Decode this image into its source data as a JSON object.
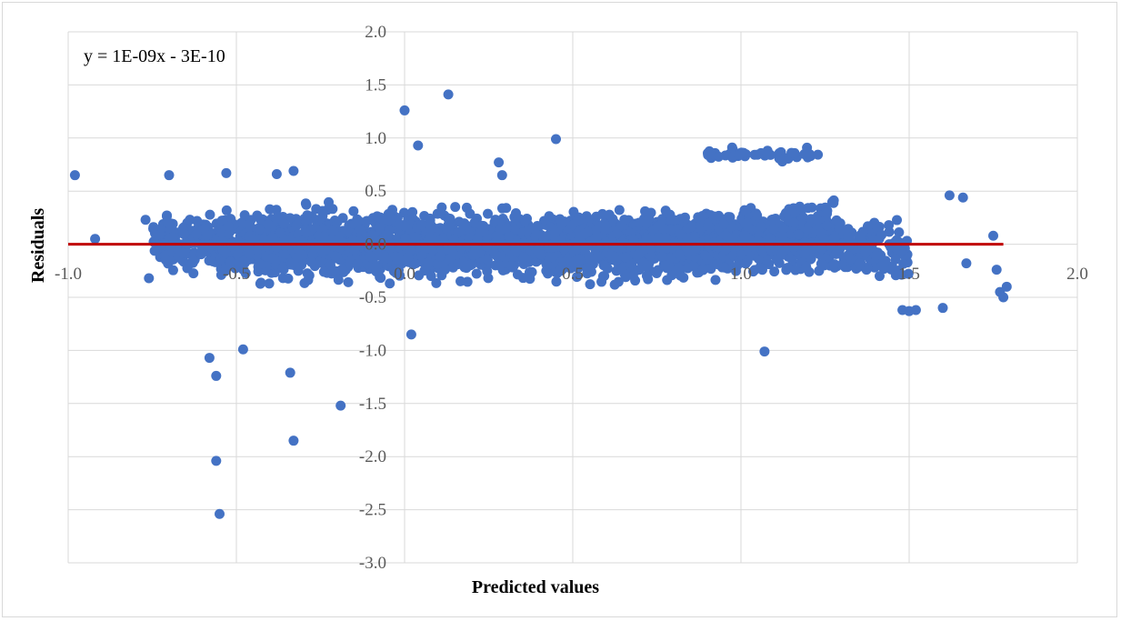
{
  "chart_data": {
    "type": "scatter",
    "title": "",
    "xlabel": "Predicted values",
    "ylabel": "Residuals",
    "xlim": [
      -1.0,
      2.0
    ],
    "ylim": [
      -3.0,
      2.0
    ],
    "x_ticks": [
      "-1.0",
      "-0.5",
      "0.0",
      "0.5",
      "1.0",
      "1.5",
      "2.0"
    ],
    "y_ticks": [
      "2.0",
      "1.5",
      "1.0",
      "0.5",
      "0.0",
      "-0.5",
      "-1.0",
      "-1.5",
      "-2.0",
      "-2.5",
      "-3.0"
    ],
    "grid": true,
    "trendline": {
      "equation": "y = 1E-09x - 3E-10",
      "x_range": [
        -1.0,
        1.78
      ],
      "slope": 1e-09,
      "intercept": -3e-10,
      "color": "#c00000"
    },
    "point_color": "#4472c4",
    "outliers": [
      [
        -0.98,
        0.65
      ],
      [
        -0.92,
        0.05
      ],
      [
        -0.58,
        -1.07
      ],
      [
        -0.56,
        -1.24
      ],
      [
        -0.56,
        -2.04
      ],
      [
        -0.55,
        -2.54
      ],
      [
        -0.48,
        -0.99
      ],
      [
        -0.34,
        -1.21
      ],
      [
        -0.33,
        -1.85
      ],
      [
        -0.19,
        -1.52
      ],
      [
        0.0,
        1.26
      ],
      [
        0.13,
        1.41
      ],
      [
        0.45,
        0.99
      ],
      [
        0.04,
        0.93
      ],
      [
        0.02,
        -0.85
      ],
      [
        1.07,
        -1.01
      ],
      [
        1.6,
        -0.6
      ],
      [
        1.62,
        0.46
      ],
      [
        1.66,
        0.44
      ],
      [
        1.67,
        -0.18
      ],
      [
        1.75,
        0.08
      ],
      [
        1.76,
        -0.24
      ],
      [
        1.77,
        -0.45
      ],
      [
        1.78,
        -0.5
      ],
      [
        1.79,
        -0.4
      ],
      [
        1.5,
        -0.63
      ],
      [
        1.48,
        -0.62
      ],
      [
        1.52,
        -0.62
      ],
      [
        -0.7,
        0.65
      ],
      [
        -0.53,
        0.67
      ],
      [
        -0.38,
        0.66
      ],
      [
        -0.33,
        0.69
      ],
      [
        0.28,
        0.77
      ],
      [
        0.29,
        0.65
      ],
      [
        -0.77,
        0.23
      ],
      [
        -0.76,
        -0.32
      ]
    ],
    "bulk_clusters": [
      {
        "x_range": [
          -0.75,
          -0.55
        ],
        "y_mean": 0.0,
        "y_spread": 0.55,
        "count": 180
      },
      {
        "x_range": [
          -0.55,
          0.0
        ],
        "y_mean": 0.0,
        "y_spread": 0.62,
        "count": 900
      },
      {
        "x_range": [
          0.0,
          0.5
        ],
        "y_mean": 0.0,
        "y_spread": 0.55,
        "count": 800
      },
      {
        "x_range": [
          0.5,
          1.0
        ],
        "y_mean": 0.0,
        "y_spread": 0.58,
        "count": 750
      },
      {
        "x_range": [
          1.0,
          1.3
        ],
        "y_mean": 0.05,
        "y_spread": 0.6,
        "count": 420
      },
      {
        "x_range": [
          0.9,
          1.25
        ],
        "y_mean": 0.85,
        "y_spread": 0.12,
        "count": 45
      },
      {
        "x_range": [
          1.3,
          1.5
        ],
        "y_mean": -0.05,
        "y_spread": 0.5,
        "count": 130
      }
    ]
  }
}
